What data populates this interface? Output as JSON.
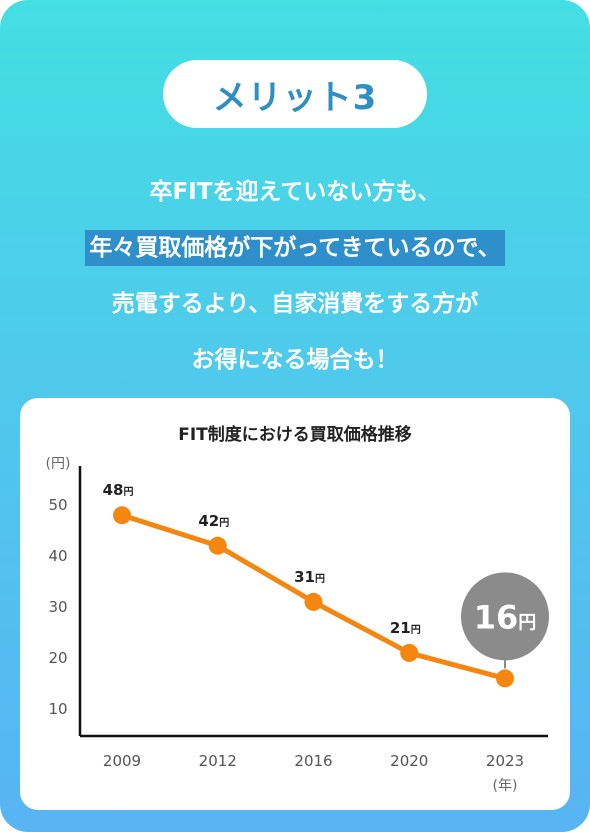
{
  "badge": {
    "label": "メリット3"
  },
  "headline": {
    "line1": "卒FITを迎えていない方も、",
    "line2": "年々買取価格が下がってきているので、",
    "line3": "売電するより、自家消費をする方が",
    "line4": "お得になる場合も！"
  },
  "colors": {
    "accent_orange": "#f5860f",
    "highlight_blue": "#2e8fca",
    "badge_text": "#2f8ec2",
    "bubble_gray": "#8b8b8b"
  },
  "chart_data": {
    "type": "line",
    "title": "FIT制度における買取価格推移",
    "ylabel": "(円)",
    "xlabel": "(年)",
    "categories": [
      "2009",
      "2012",
      "2016",
      "2020",
      "2023"
    ],
    "values": [
      48,
      42,
      31,
      21,
      16
    ],
    "data_labels": [
      "48",
      "42",
      "31",
      "21",
      "16"
    ],
    "label_unit": "円",
    "yticks": [
      10,
      20,
      30,
      40,
      50
    ],
    "ylim": [
      0,
      55
    ],
    "grid": false,
    "highlight": {
      "category": "2023",
      "value": 16,
      "label": "16",
      "unit": "円"
    }
  }
}
